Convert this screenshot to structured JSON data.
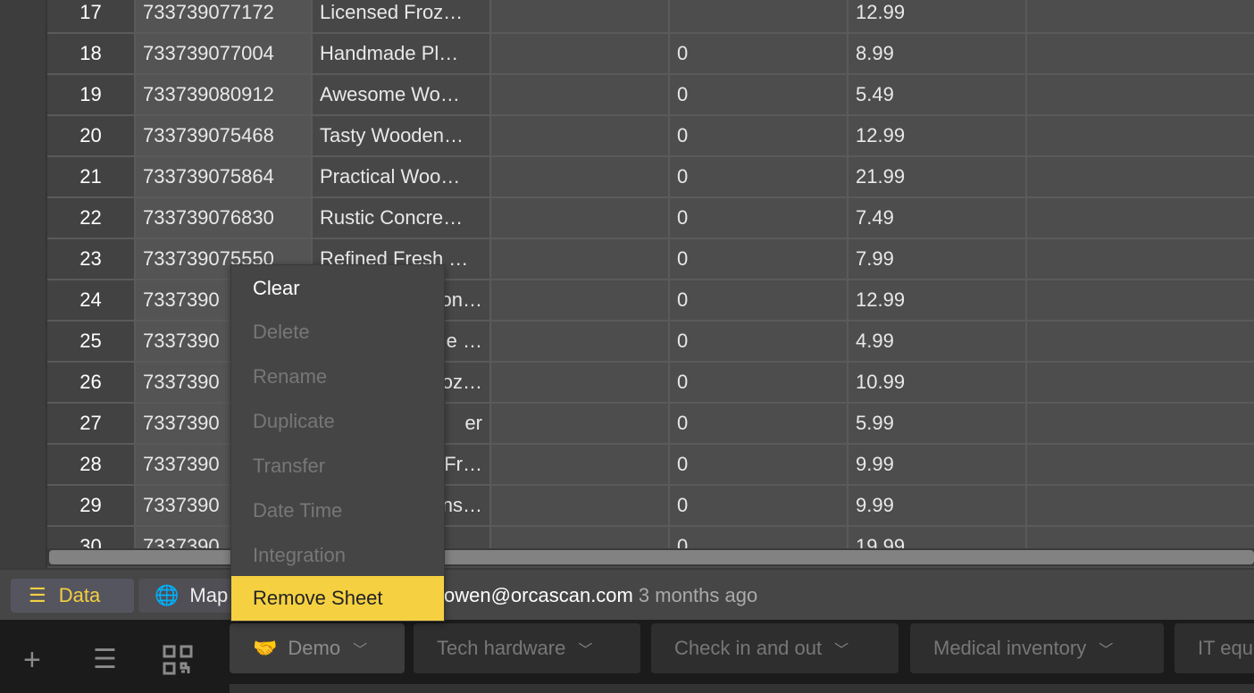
{
  "table": {
    "rows": [
      [
        "17",
        "733739077172",
        "Licensed Froz…",
        "",
        "",
        "12.99",
        ""
      ],
      [
        "18",
        "733739077004",
        "Handmade Pl…",
        "",
        "0",
        "8.99",
        ""
      ],
      [
        "19",
        "733739080912",
        "Awesome Wo…",
        "",
        "0",
        "5.49",
        ""
      ],
      [
        "20",
        "733739075468",
        "Tasty Wooden…",
        "",
        "0",
        "12.99",
        ""
      ],
      [
        "21",
        "733739075864",
        "Practical Woo…",
        "",
        "0",
        "21.99",
        ""
      ],
      [
        "22",
        "733739076830",
        "Rustic Concre…",
        "",
        "0",
        "7.49",
        ""
      ],
      [
        "23",
        "733739075550",
        "Refined Fresh …",
        "",
        "0",
        "7.99",
        ""
      ],
      [
        "24",
        "7337390",
        "on…",
        "",
        "0",
        "12.99",
        ""
      ],
      [
        "25",
        "7337390",
        "e …",
        "",
        "0",
        "4.99",
        ""
      ],
      [
        "26",
        "7337390",
        "oz…",
        "",
        "0",
        "10.99",
        ""
      ],
      [
        "27",
        "7337390",
        "er",
        "",
        "0",
        "5.99",
        ""
      ],
      [
        "28",
        "7337390",
        "Fr…",
        "",
        "0",
        "9.99",
        ""
      ],
      [
        "29",
        "7337390",
        "ns…",
        "",
        "0",
        "9.99",
        ""
      ],
      [
        "30",
        "7337390",
        "",
        "",
        "0",
        "19.99",
        ""
      ]
    ]
  },
  "context_menu": {
    "items": [
      {
        "label": "Clear",
        "enabled": true
      },
      {
        "label": "Delete",
        "enabled": false
      },
      {
        "label": "Rename",
        "enabled": false
      },
      {
        "label": "Duplicate",
        "enabled": false
      },
      {
        "label": "Transfer",
        "enabled": false
      },
      {
        "label": "Date Time",
        "enabled": false
      },
      {
        "label": "Integration",
        "enabled": false
      },
      {
        "label": "Remove Sheet",
        "enabled": true,
        "highlighted": true
      }
    ]
  },
  "status": {
    "data_tab": "Data",
    "map_tab": "Map",
    "owner": "owen@orcascan.com",
    "updated": "3 months ago"
  },
  "sheets": [
    {
      "label": "Demo",
      "icon": "handshake-icon"
    },
    {
      "label": "Tech hardware"
    },
    {
      "label": "Check in and out"
    },
    {
      "label": "Medical inventory"
    },
    {
      "label": "IT equ"
    }
  ],
  "colors": {
    "accent": "#f5d142",
    "menu_bg": "#454545",
    "bottom_bar": "#1b1b1b"
  }
}
